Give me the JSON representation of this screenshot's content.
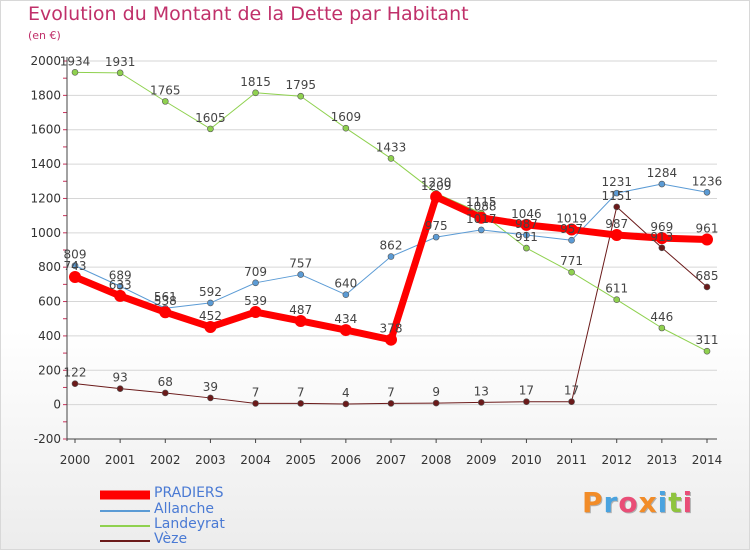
{
  "logo": {
    "text": "Proxiti"
  },
  "colors": {
    "title": "#c0306a",
    "legend_text": "#4a7ad4",
    "axis_text": "#333333",
    "gridline": "#d6d6d6",
    "axis_line": "#444444"
  },
  "chart_data": {
    "type": "line",
    "title": "Evolution du Montant de la Dette par Habitant",
    "subtitle": "(en €)",
    "xlabel": "",
    "ylabel": "",
    "x": [
      "2000",
      "2001",
      "2002",
      "2003",
      "2004",
      "2005",
      "2006",
      "2007",
      "2008",
      "2009",
      "2010",
      "2011",
      "2012",
      "2013",
      "2014"
    ],
    "ylim": [
      -200,
      2000
    ],
    "yticks": [
      -200,
      0,
      200,
      400,
      600,
      800,
      1000,
      1200,
      1400,
      1600,
      1800,
      2000
    ],
    "grid": true,
    "legend_position": "bottom-left",
    "series": [
      {
        "name": "PRADIERS",
        "color": "#ff0000",
        "width": 7,
        "marker": 6,
        "values": [
          743,
          633,
          538,
          452,
          539,
          487,
          434,
          378,
          1209,
          1088,
          1046,
          1019,
          987,
          969,
          961
        ],
        "labels": [
          "743",
          "633",
          "538",
          "452",
          "539",
          "487",
          "434",
          "378",
          "1209",
          "1088",
          "1046",
          "1019",
          "987",
          "969",
          "961"
        ]
      },
      {
        "name": "Allanche",
        "color": "#5b9bd5",
        "width": 1,
        "marker": 3,
        "values": [
          809,
          689,
          561,
          592,
          709,
          757,
          640,
          862,
          975,
          1017,
          987,
          957,
          1231,
          1284,
          1236
        ],
        "labels": [
          "809",
          "689",
          "561",
          "592",
          "709",
          "757",
          "640",
          "862",
          "975",
          "1017",
          "987",
          "957",
          "1231",
          "1284",
          "1236"
        ]
      },
      {
        "name": "Landeyrat",
        "color": "#8fd14f",
        "width": 1,
        "marker": 3,
        "values": [
          1934,
          1931,
          1765,
          1605,
          1815,
          1795,
          1609,
          1433,
          1230,
          1115,
          911,
          771,
          611,
          446,
          311
        ],
        "labels": [
          "1934",
          "1931",
          "1765",
          "1605",
          "1815",
          "1795",
          "1609",
          "1433",
          "1230",
          "1115",
          "911",
          "771",
          "611",
          "446",
          "311"
        ]
      },
      {
        "name": "Vèze",
        "color": "#6b1a1a",
        "width": 1,
        "marker": 3,
        "values": [
          122,
          93,
          68,
          39,
          7,
          7,
          4,
          7,
          9,
          13,
          17,
          17,
          1151,
          913,
          685
        ],
        "labels": [
          "122",
          "93",
          "68",
          "39",
          "7",
          "7",
          "4",
          "7",
          "9",
          "13",
          "17",
          "17",
          "1151",
          "913",
          "685"
        ]
      }
    ]
  }
}
